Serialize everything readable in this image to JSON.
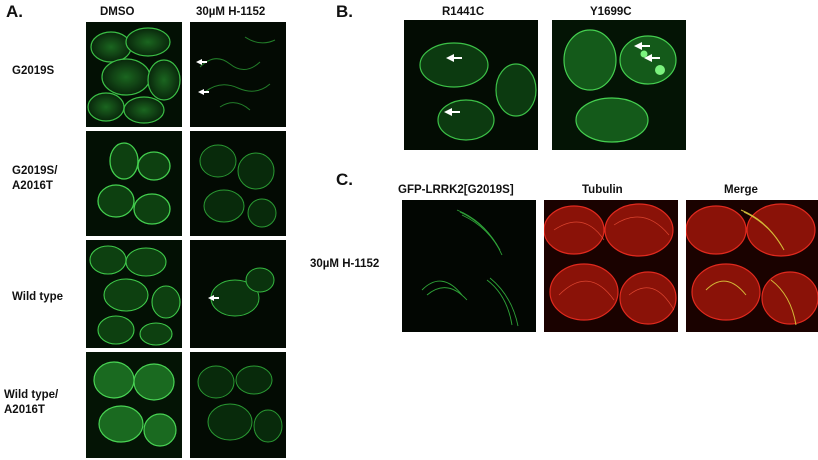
{
  "figure": {
    "panel_a": {
      "letter": "A.",
      "col_headers": [
        "DMSO",
        "30µM H-1152"
      ],
      "rows": [
        {
          "label_line1": "G2019S",
          "label_line2": ""
        },
        {
          "label_line1": "G2019S/",
          "label_line2": "A2016T"
        },
        {
          "label_line1": "Wild type",
          "label_line2": ""
        },
        {
          "label_line1": "Wild type/",
          "label_line2": "A2016T"
        }
      ]
    },
    "panel_b": {
      "letter": "B.",
      "headers": [
        "R1441C",
        "Y1699C"
      ]
    },
    "panel_c": {
      "letter": "C.",
      "headers": [
        "GFP-LRRK2[G2019S]",
        "Tubulin",
        "Merge"
      ],
      "row_label": "30µM H-1152"
    },
    "colors": {
      "gfp_green": "#2fb83a",
      "tubulin_red": "#e02a1e",
      "merge_yellow": "#d8c23a",
      "image_background": "#040804",
      "arrow_white": "#ffffff"
    }
  }
}
